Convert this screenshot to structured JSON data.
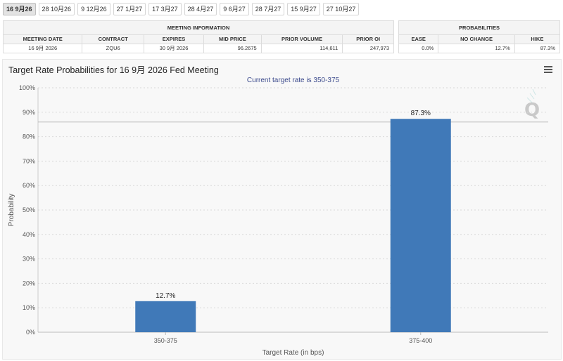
{
  "tabs": [
    {
      "label": "16 9月26",
      "active": true
    },
    {
      "label": "28 10月26",
      "active": false
    },
    {
      "label": "9 12月26",
      "active": false
    },
    {
      "label": "27 1月27",
      "active": false
    },
    {
      "label": "17 3月27",
      "active": false
    },
    {
      "label": "28 4月27",
      "active": false
    },
    {
      "label": "9 6月27",
      "active": false
    },
    {
      "label": "28 7月27",
      "active": false
    },
    {
      "label": "15 9月27",
      "active": false
    },
    {
      "label": "27 10月27",
      "active": false
    }
  ],
  "meeting": {
    "heading": "MEETING INFORMATION",
    "headers": {
      "date": "MEETING DATE",
      "contract": "CONTRACT",
      "expires": "EXPIRES",
      "mid": "MID PRICE",
      "volume": "PRIOR VOLUME",
      "oi": "PRIOR OI"
    },
    "row": {
      "date": "16 9月 2026",
      "contract": "ZQU6",
      "expires": "30 9月 2026",
      "mid": "96.2675",
      "volume": "114,611",
      "oi": "247,973"
    }
  },
  "probabilities": {
    "heading": "PROBABILITIES",
    "headers": {
      "ease": "EASE",
      "no_change": "NO CHANGE",
      "hike": "HIKE"
    },
    "row": {
      "ease": "0.0%",
      "no_change": "12.7%",
      "hike": "87.3%"
    }
  },
  "chart_data": {
    "type": "bar",
    "title": "Target Rate Probabilities for 16 9月 2026 Fed Meeting",
    "subtitle": "Current target rate is 350-375",
    "xlabel": "Target Rate (in bps)",
    "ylabel": "Probability",
    "categories": [
      "350-375",
      "375-400"
    ],
    "values": [
      12.7,
      87.3
    ],
    "data_labels": [
      "12.7%",
      "87.3%"
    ],
    "ylim": [
      0,
      100
    ],
    "yticks": [
      0,
      10,
      20,
      30,
      40,
      50,
      60,
      70,
      80,
      90,
      100
    ],
    "ytick_labels": [
      "0%",
      "10%",
      "20%",
      "30%",
      "40%",
      "50%",
      "60%",
      "70%",
      "80%",
      "90%",
      "100%"
    ],
    "reference_line": 86,
    "bar_color": "#4079b8",
    "grid": true
  }
}
